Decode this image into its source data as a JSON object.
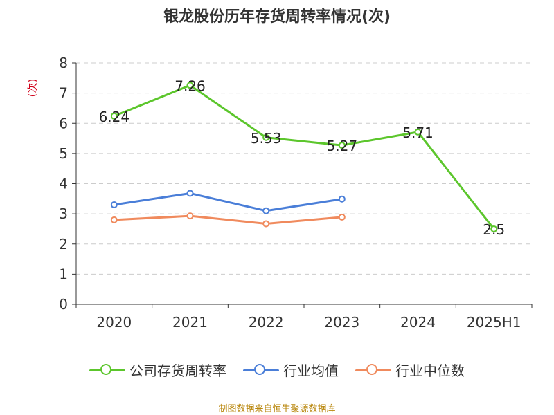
{
  "title": "银龙股份历年存货周转率情况(次)",
  "source_note": "制图数据来自恒生聚源数据库",
  "legend": [
    {
      "name": "公司存货周转率",
      "color": "#5cc62c"
    },
    {
      "name": "行业均值",
      "color": "#4a7ed8"
    },
    {
      "name": "行业中位数",
      "color": "#f08a5d"
    }
  ],
  "chart_data": {
    "type": "line",
    "title": "银龙股份历年存货周转率情况(次)",
    "ylabel": "(次)",
    "ylabel_color": "#d0021b",
    "categories": [
      "2020",
      "2021",
      "2022",
      "2023",
      "2024",
      "2025H1"
    ],
    "y_ticks": [
      "0",
      "1",
      "2",
      "3",
      "4",
      "5",
      "6",
      "7",
      "8"
    ],
    "ylim": [
      0,
      8
    ],
    "grid": true,
    "legend_position": "bottom",
    "series": [
      {
        "name": "公司存货周转率",
        "color": "#5cc62c",
        "values": [
          6.24,
          7.26,
          5.53,
          5.27,
          5.71,
          2.5
        ],
        "labels": [
          "6.24",
          "7.26",
          "5.53",
          "5.27",
          "5.71",
          "2.5"
        ]
      },
      {
        "name": "行业均值",
        "color": "#4a7ed8",
        "values": [
          3.3,
          3.68,
          3.1,
          3.49,
          null,
          null
        ]
      },
      {
        "name": "行业中位数",
        "color": "#f08a5d",
        "values": [
          2.8,
          2.93,
          2.67,
          2.89,
          null,
          null
        ]
      }
    ]
  }
}
